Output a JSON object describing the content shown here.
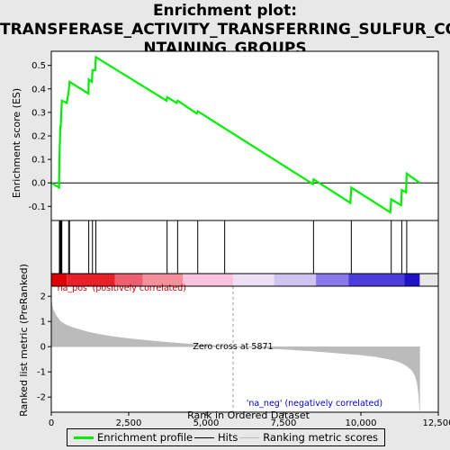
{
  "title_lines": [
    "Enrichment plot:",
    "TRANSFERASE_ACTIVITY_TRANSFERRING_SULFUR_CO",
    "NTAINING_GROUPS"
  ],
  "chart_data": {
    "type": "line",
    "x_label": "Rank in Ordered Dataset",
    "top_panel": {
      "ylabel": "Enrichment score (ES)",
      "ylim": [
        -0.16,
        0.56
      ],
      "yticks": [
        -0.1,
        0.0,
        0.1,
        0.2,
        0.3,
        0.4,
        0.5
      ],
      "ytick_labels": [
        "-0.1",
        "0.0",
        "0.1",
        "0.2",
        "0.3",
        "0.4",
        "0.5"
      ],
      "series": [
        {
          "name": "Enrichment profile",
          "color": "#00ee00",
          "x": [
            0,
            250,
            262,
            270,
            290,
            305,
            320,
            340,
            500,
            560,
            590,
            1200,
            1210,
            1310,
            1330,
            1420,
            1440,
            3720,
            3740,
            4050,
            4080,
            4700,
            4730,
            8450,
            8470,
            9660,
            9690,
            10950,
            10980,
            11300,
            11320,
            11460,
            11480,
            11900
          ],
          "y": [
            0.0,
            -0.02,
            0.11,
            0.14,
            0.24,
            0.24,
            0.29,
            0.35,
            0.34,
            0.39,
            0.43,
            0.38,
            0.44,
            0.43,
            0.48,
            0.48,
            0.535,
            0.35,
            0.365,
            0.34,
            0.35,
            0.295,
            0.305,
            -0.005,
            0.015,
            -0.085,
            -0.02,
            -0.125,
            -0.07,
            -0.095,
            -0.03,
            -0.04,
            0.04,
            0.0
          ]
        }
      ]
    },
    "hits": {
      "name": "Hits",
      "x": [
        262,
        290,
        320,
        340,
        560,
        590,
        1210,
        1330,
        1440,
        3740,
        4080,
        4730,
        5600,
        8470,
        9690,
        10980,
        11320,
        11480
      ]
    },
    "heatmap_bar": {
      "segments": [
        {
          "from": 0,
          "to": 500,
          "color": "#dd0000"
        },
        {
          "from": 500,
          "to": 2050,
          "color": "#e8202a"
        },
        {
          "from": 2050,
          "to": 2950,
          "color": "#ee5f70"
        },
        {
          "from": 2950,
          "to": 4250,
          "color": "#f4909c"
        },
        {
          "from": 4250,
          "to": 5871,
          "color": "#f9c3dd"
        },
        {
          "from": 5871,
          "to": 7200,
          "color": "#ede0f4"
        },
        {
          "from": 7200,
          "to": 8550,
          "color": "#cfc3f2"
        },
        {
          "from": 8550,
          "to": 9600,
          "color": "#8878ec"
        },
        {
          "from": 9600,
          "to": 11400,
          "color": "#4e3bdc"
        },
        {
          "from": 11400,
          "to": 11900,
          "color": "#1f12c6"
        }
      ]
    },
    "bottom_panel": {
      "ylabel": "Ranked list metric (PreRanked)",
      "ylim": [
        -2.6,
        2.4
      ],
      "yticks": [
        -2,
        -1,
        0,
        1,
        2
      ],
      "ytick_labels": [
        "-2",
        "-1",
        "0",
        "1",
        "2"
      ],
      "series_name": "Ranking metric scores",
      "color": "#bbbbbb",
      "x": [
        0,
        50,
        150,
        300,
        500,
        800,
        1200,
        1600,
        2000,
        2500,
        3000,
        3500,
        4000,
        4500,
        5000,
        5500,
        5871,
        6500,
        7000,
        7500,
        8000,
        8500,
        9000,
        9500,
        10000,
        10500,
        10800,
        11100,
        11300,
        11500,
        11650,
        11750,
        11820,
        11870,
        11900
      ],
      "y": [
        1.8,
        1.5,
        1.25,
        1.0,
        0.85,
        0.72,
        0.58,
        0.48,
        0.4,
        0.32,
        0.26,
        0.2,
        0.15,
        0.1,
        0.06,
        0.03,
        0.0,
        -0.04,
        -0.07,
        -0.1,
        -0.14,
        -0.18,
        -0.23,
        -0.28,
        -0.33,
        -0.4,
        -0.47,
        -0.55,
        -0.64,
        -0.78,
        -0.95,
        -1.15,
        -1.45,
        -1.95,
        -2.55
      ]
    },
    "zero_cross": 5871,
    "annotations": {
      "pos": "'na_pos' (positively correlated)",
      "neg": "'na_neg' (negatively correlated)",
      "zero": "Zero cross at 5871"
    },
    "xlim": [
      0,
      12500
    ],
    "xticks": [
      0,
      2500,
      5000,
      7500,
      10000,
      12500
    ],
    "xtick_labels": [
      "0",
      "2,500",
      "5,000",
      "7,500",
      "10,000",
      "12,500"
    ]
  },
  "legend": {
    "items": [
      {
        "label": "Enrichment profile",
        "color": "#00ee00"
      },
      {
        "label": "Hits",
        "color": "#000000"
      },
      {
        "label": "Ranking metric scores",
        "color": "#bbbbbb"
      }
    ]
  },
  "colors": {
    "pos_text": "#cc0000",
    "neg_text": "#0000cc",
    "zero_line": "#999999"
  }
}
